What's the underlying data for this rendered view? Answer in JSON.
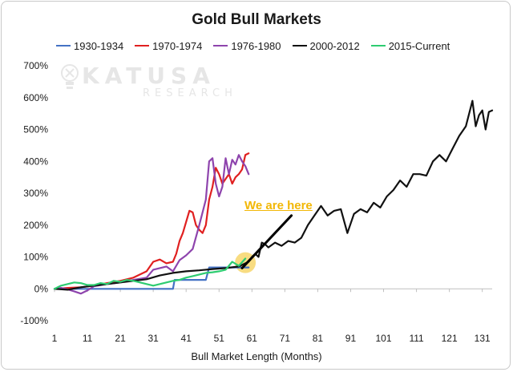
{
  "chart_data": {
    "type": "line",
    "title": "Gold Bull Markets",
    "xlabel": "Bull Market Length (Months)",
    "ylabel": "",
    "xlim": [
      1,
      134
    ],
    "ylim": [
      -100,
      700
    ],
    "y_ticks": [
      "-100%",
      "0%",
      "100%",
      "200%",
      "300%",
      "400%",
      "500%",
      "600%",
      "700%"
    ],
    "y_tick_values": [
      -100,
      0,
      100,
      200,
      300,
      400,
      500,
      600,
      700
    ],
    "x_ticks": [
      "1",
      "11",
      "21",
      "31",
      "41",
      "51",
      "61",
      "71",
      "81",
      "91",
      "101",
      "111",
      "121",
      "131"
    ],
    "x_tick_values": [
      1,
      11,
      21,
      31,
      41,
      51,
      61,
      71,
      81,
      91,
      101,
      111,
      121,
      131
    ],
    "grid": false,
    "legend": "top",
    "series": [
      {
        "name": "1930-1934",
        "color": "#4472c4",
        "x": [
          1,
          10,
          20,
          30,
          37,
          37.5,
          45,
          46,
          47,
          48,
          49,
          58,
          59,
          60
        ],
        "y": [
          0,
          0,
          0,
          0,
          0,
          28,
          28,
          28,
          28,
          67,
          67,
          67,
          67,
          67
        ]
      },
      {
        "name": "1970-1974",
        "color": "#e02020",
        "x": [
          1,
          5,
          9,
          13,
          17,
          21,
          25,
          29,
          31,
          33,
          35,
          37,
          38,
          39,
          40,
          41,
          42,
          43,
          44,
          45,
          46,
          47,
          48,
          49,
          50,
          51,
          52,
          53,
          54,
          55,
          56,
          57,
          58,
          59,
          60
        ],
        "y": [
          0,
          3,
          5,
          10,
          18,
          25,
          35,
          55,
          85,
          92,
          80,
          85,
          110,
          150,
          175,
          210,
          245,
          240,
          200,
          185,
          175,
          200,
          280,
          320,
          380,
          360,
          330,
          345,
          360,
          330,
          350,
          360,
          375,
          420,
          425
        ]
      },
      {
        "name": "1976-1980",
        "color": "#8e44ad",
        "x": [
          1,
          3,
          5,
          7,
          9,
          11,
          13,
          17,
          21,
          25,
          29,
          31,
          33,
          35,
          37,
          39,
          41,
          43,
          45,
          47,
          48,
          49,
          50,
          51,
          52,
          53,
          54,
          55,
          56,
          57,
          58,
          59,
          60
        ],
        "y": [
          0,
          3,
          -2,
          -8,
          -15,
          -5,
          8,
          15,
          20,
          28,
          35,
          60,
          65,
          70,
          55,
          90,
          105,
          125,
          200,
          280,
          400,
          410,
          330,
          290,
          320,
          410,
          360,
          405,
          390,
          420,
          400,
          385,
          360
        ]
      },
      {
        "name": "2000-2012",
        "color": "#111111",
        "x": [
          1,
          5,
          9,
          13,
          17,
          21,
          25,
          29,
          33,
          37,
          41,
          45,
          49,
          53,
          57,
          60,
          61,
          62,
          63,
          64,
          65,
          66,
          68,
          70,
          72,
          74,
          76,
          78,
          80,
          82,
          84,
          86,
          88,
          90,
          92,
          94,
          96,
          98,
          100,
          102,
          104,
          106,
          108,
          110,
          112,
          114,
          116,
          118,
          120,
          122,
          124,
          126,
          128,
          129,
          130,
          131,
          132,
          133,
          134
        ],
        "y": [
          0,
          -3,
          5,
          10,
          15,
          20,
          25,
          30,
          42,
          50,
          55,
          58,
          62,
          65,
          70,
          85,
          100,
          110,
          100,
          145,
          140,
          130,
          145,
          135,
          150,
          145,
          160,
          200,
          230,
          260,
          230,
          245,
          250,
          175,
          235,
          250,
          240,
          270,
          255,
          290,
          310,
          340,
          320,
          360,
          360,
          355,
          400,
          420,
          400,
          440,
          480,
          510,
          590,
          510,
          545,
          560,
          500,
          555,
          560
        ]
      },
      {
        "name": "2015-Current",
        "color": "#2ecc71",
        "x": [
          1,
          3,
          5,
          7,
          9,
          11,
          13,
          15,
          17,
          19,
          21,
          23,
          25,
          27,
          29,
          31,
          33,
          35,
          37,
          39,
          41,
          43,
          45,
          47,
          49,
          51,
          53,
          55,
          57,
          59
        ],
        "y": [
          0,
          10,
          15,
          20,
          18,
          12,
          12,
          18,
          15,
          25,
          22,
          28,
          25,
          20,
          15,
          10,
          15,
          20,
          25,
          28,
          35,
          40,
          45,
          50,
          52,
          55,
          60,
          85,
          72,
          95
        ]
      }
    ],
    "annotation": {
      "text": "We are here",
      "highlight": {
        "x": 59,
        "y": 82
      },
      "arrow_from": {
        "x": 58,
        "y": 65
      },
      "arrow_to": {
        "x": 73,
        "y": 230
      },
      "color": "#f2b705",
      "highlight_color": "#f7d66b"
    },
    "watermark": {
      "line1": "KATUSA",
      "line2": "RESEARCH"
    }
  }
}
